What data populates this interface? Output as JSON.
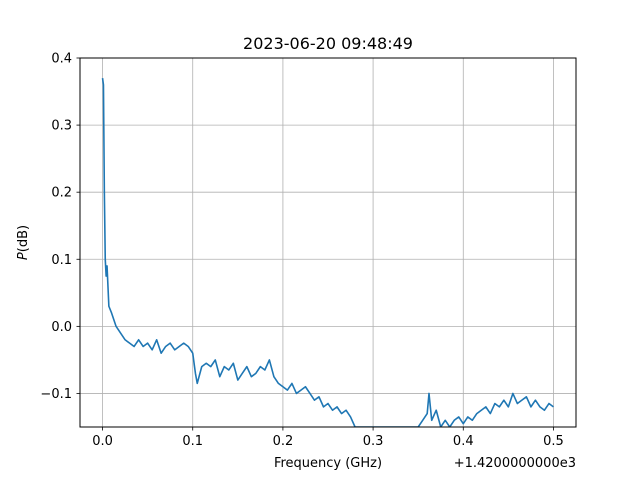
{
  "chart_data": {
    "type": "line",
    "title": "2023-06-20 09:48:49",
    "xlabel": "Frequency (GHz)",
    "ylabel": "P(dB)",
    "ylabel_italic_part": "P",
    "ylabel_rest": "(dB)",
    "x_offset_label": "+1.4200000000e3",
    "xlim": [
      -0.025,
      0.525
    ],
    "ylim": [
      -0.15,
      0.4
    ],
    "x_ticks": [
      0.0,
      0.1,
      0.2,
      0.3,
      0.4,
      0.5
    ],
    "x_tick_labels": [
      "0.0",
      "0.1",
      "0.2",
      "0.3",
      "0.4",
      "0.5"
    ],
    "y_ticks": [
      -0.1,
      0.0,
      0.1,
      0.2,
      0.3,
      0.4
    ],
    "y_tick_labels": [
      "−0.1",
      "0.0",
      "0.1",
      "0.2",
      "0.3",
      "0.4"
    ],
    "grid": true,
    "line_color": "#1f77b4",
    "series": [
      {
        "x": [
          0.0,
          0.001,
          0.002,
          0.003,
          0.004,
          0.005,
          0.007,
          0.01,
          0.015,
          0.02,
          0.025,
          0.03,
          0.035,
          0.04,
          0.045,
          0.05,
          0.055,
          0.06,
          0.065,
          0.07,
          0.075,
          0.08,
          0.085,
          0.09,
          0.095,
          0.1,
          0.103,
          0.105,
          0.11,
          0.115,
          0.12,
          0.125,
          0.13,
          0.135,
          0.14,
          0.145,
          0.15,
          0.155,
          0.16,
          0.165,
          0.17,
          0.175,
          0.18,
          0.185,
          0.19,
          0.195,
          0.2,
          0.205,
          0.21,
          0.215,
          0.22,
          0.225,
          0.23,
          0.235,
          0.24,
          0.245,
          0.25,
          0.255,
          0.26,
          0.265,
          0.27,
          0.275,
          0.28,
          0.35,
          0.355,
          0.36,
          0.362,
          0.365,
          0.37,
          0.375,
          0.38,
          0.385,
          0.39,
          0.395,
          0.4,
          0.405,
          0.41,
          0.415,
          0.42,
          0.425,
          0.43,
          0.435,
          0.44,
          0.445,
          0.45,
          0.455,
          0.46,
          0.465,
          0.47,
          0.475,
          0.48,
          0.485,
          0.49,
          0.495,
          0.5
        ],
        "y": [
          0.37,
          0.36,
          0.2,
          0.1,
          0.075,
          0.09,
          0.03,
          0.02,
          0.0,
          -0.01,
          -0.02,
          -0.025,
          -0.03,
          -0.02,
          -0.03,
          -0.025,
          -0.035,
          -0.02,
          -0.04,
          -0.03,
          -0.025,
          -0.035,
          -0.03,
          -0.025,
          -0.03,
          -0.04,
          -0.07,
          -0.085,
          -0.06,
          -0.055,
          -0.06,
          -0.05,
          -0.075,
          -0.06,
          -0.065,
          -0.055,
          -0.08,
          -0.07,
          -0.06,
          -0.075,
          -0.07,
          -0.06,
          -0.065,
          -0.05,
          -0.075,
          -0.085,
          -0.09,
          -0.095,
          -0.085,
          -0.1,
          -0.095,
          -0.09,
          -0.1,
          -0.11,
          -0.105,
          -0.12,
          -0.115,
          -0.125,
          -0.12,
          -0.13,
          -0.125,
          -0.135,
          -0.15,
          -0.15,
          -0.14,
          -0.13,
          -0.1,
          -0.14,
          -0.125,
          -0.15,
          -0.14,
          -0.15,
          -0.14,
          -0.135,
          -0.145,
          -0.135,
          -0.14,
          -0.13,
          -0.125,
          -0.12,
          -0.13,
          -0.115,
          -0.12,
          -0.11,
          -0.12,
          -0.1,
          -0.115,
          -0.11,
          -0.105,
          -0.12,
          -0.11,
          -0.12,
          -0.125,
          -0.115,
          -0.12
        ]
      }
    ]
  }
}
